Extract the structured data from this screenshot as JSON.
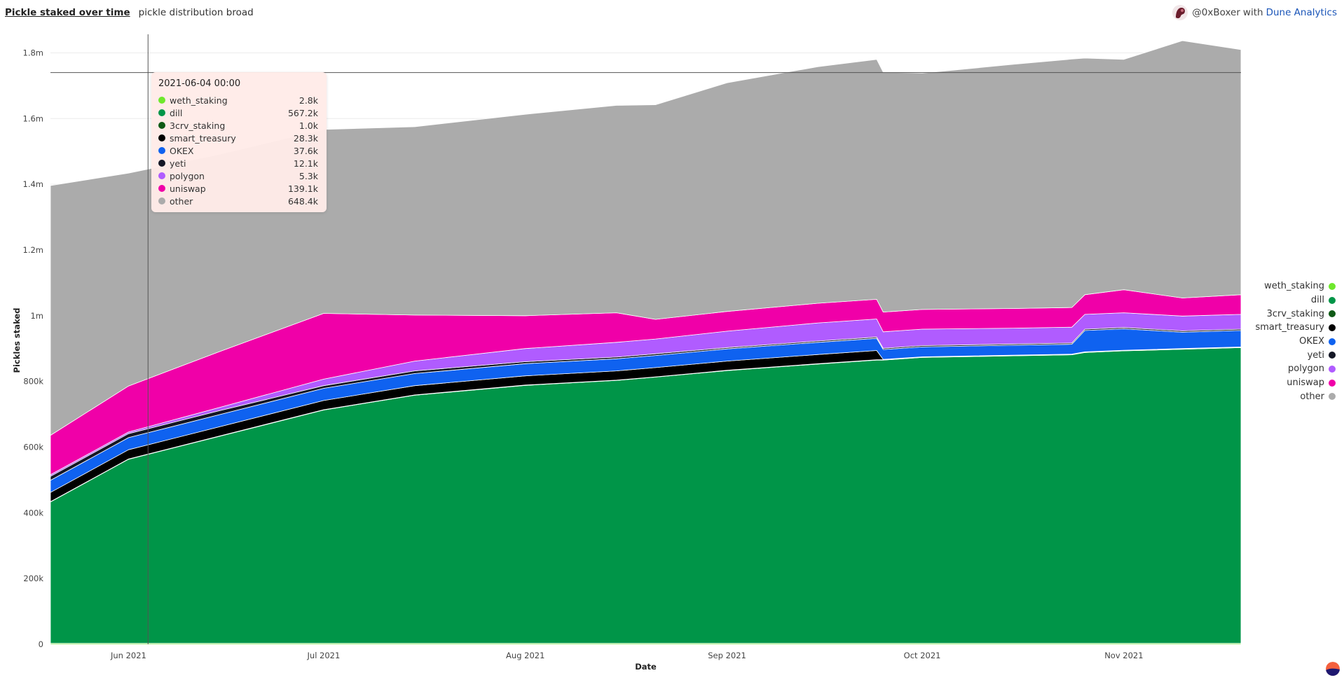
{
  "header": {
    "title": "Pickle staked over time",
    "subtitle": "pickle distribution broad"
  },
  "credit": {
    "user": "@0xBoxer",
    "with": "with",
    "brand": "Dune Analytics"
  },
  "tooltip": {
    "date": "2021-06-04 00:00",
    "rows": [
      {
        "name": "weth_staking",
        "value": "2.8k",
        "color": "#6ee82c"
      },
      {
        "name": "dill",
        "value": "567.2k",
        "color": "#009548"
      },
      {
        "name": "3crv_staking",
        "value": "1.0k",
        "color": "#0f5a16"
      },
      {
        "name": "smart_treasury",
        "value": "28.3k",
        "color": "#000000"
      },
      {
        "name": "OKEX",
        "value": "37.6k",
        "color": "#0f62f0"
      },
      {
        "name": "yeti",
        "value": "12.1k",
        "color": "#141726"
      },
      {
        "name": "polygon",
        "value": "5.3k",
        "color": "#b05cff"
      },
      {
        "name": "uniswap",
        "value": "139.1k",
        "color": "#f000a8"
      },
      {
        "name": "other",
        "value": "648.4k",
        "color": "#ababab"
      }
    ]
  },
  "chart_data": {
    "type": "area",
    "stacked": true,
    "xlabel": "Date",
    "ylabel": "Pickles staked",
    "ylim": [
      0,
      1850000
    ],
    "y_ticks": [
      0,
      200000,
      400000,
      600000,
      800000,
      1000000,
      1200000,
      1400000,
      1600000,
      1800000
    ],
    "y_tick_labels": [
      "0",
      "200k",
      "400k",
      "600k",
      "800k",
      "1m",
      "1.2m",
      "1.4m",
      "1.6m",
      "1.8m"
    ],
    "x_ticks": [
      "2021-06-01",
      "2021-07-01",
      "2021-08-01",
      "2021-09-01",
      "2021-10-01",
      "2021-11-01"
    ],
    "x_tick_labels": [
      "Jun 2021",
      "Jul 2021",
      "Aug 2021",
      "Sep 2021",
      "Oct 2021",
      "Nov 2021"
    ],
    "xlim": [
      "2021-05-20",
      "2021-11-19"
    ],
    "grid": true,
    "legend_position": "right",
    "hover_line_date": "2021-06-04",
    "hover_reference_value": 1740000,
    "x": [
      "2021-05-20",
      "2021-06-01",
      "2021-06-15",
      "2021-07-01",
      "2021-07-15",
      "2021-08-01",
      "2021-08-15",
      "2021-08-21",
      "2021-09-01",
      "2021-09-15",
      "2021-09-24",
      "2021-09-25",
      "2021-10-01",
      "2021-10-15",
      "2021-10-24",
      "2021-10-26",
      "2021-11-01",
      "2021-11-10",
      "2021-11-19"
    ],
    "series": [
      {
        "name": "weth_staking",
        "color": "#6ee82c",
        "values": [
          3000,
          3000,
          3000,
          3000,
          3000,
          3000,
          3000,
          3000,
          3000,
          3000,
          3000,
          3000,
          3000,
          3000,
          3000,
          3000,
          3000,
          3000,
          3000
        ]
      },
      {
        "name": "dill",
        "color": "#009548",
        "values": [
          430000,
          560000,
          630000,
          710000,
          755000,
          785000,
          800000,
          810000,
          830000,
          850000,
          862000,
          862000,
          870000,
          875000,
          878000,
          885000,
          890000,
          895000,
          900000
        ]
      },
      {
        "name": "3crv_staking",
        "color": "#0f5a16",
        "values": [
          1000,
          1000,
          1000,
          1000,
          1000,
          1000,
          1000,
          1000,
          1000,
          1000,
          1000,
          1000,
          1000,
          1000,
          1000,
          1000,
          1000,
          1000,
          1000
        ]
      },
      {
        "name": "smart_treasury",
        "color": "#000000",
        "values": [
          28000,
          28000,
          28000,
          28000,
          28000,
          28000,
          28000,
          28000,
          28000,
          28000,
          28000,
          1000,
          1000,
          1000,
          1000,
          1000,
          1000,
          1000,
          1000
        ]
      },
      {
        "name": "OKEX",
        "color": "#0f62f0",
        "values": [
          37000,
          37000,
          37000,
          37000,
          37000,
          37000,
          37000,
          37000,
          37000,
          37000,
          37000,
          30000,
          30000,
          30000,
          30000,
          65000,
          65000,
          50000,
          50000
        ]
      },
      {
        "name": "yeti",
        "color": "#141726",
        "values": [
          12000,
          12000,
          12000,
          8000,
          8000,
          6000,
          5000,
          5000,
          4000,
          4000,
          4000,
          4000,
          4000,
          4000,
          4000,
          4000,
          4000,
          4000,
          4000
        ]
      },
      {
        "name": "polygon",
        "color": "#b05cff",
        "values": [
          5000,
          5000,
          10000,
          20000,
          30000,
          40000,
          45000,
          45000,
          50000,
          55000,
          55000,
          50000,
          50000,
          48000,
          48000,
          45000,
          45000,
          45000,
          45000
        ]
      },
      {
        "name": "uniswap",
        "color": "#f000a8",
        "values": [
          120000,
          140000,
          170000,
          200000,
          140000,
          100000,
          90000,
          60000,
          60000,
          60000,
          60000,
          60000,
          60000,
          60000,
          60000,
          60000,
          70000,
          55000,
          60000
        ]
      },
      {
        "name": "other",
        "color": "#ababab",
        "values": [
          760000,
          648000,
          600000,
          560000,
          573000,
          613000,
          631000,
          653000,
          696000,
          720000,
          730000,
          730000,
          719000,
          743000,
          756000,
          720000,
          701000,
          783000,
          746000
        ]
      }
    ]
  }
}
